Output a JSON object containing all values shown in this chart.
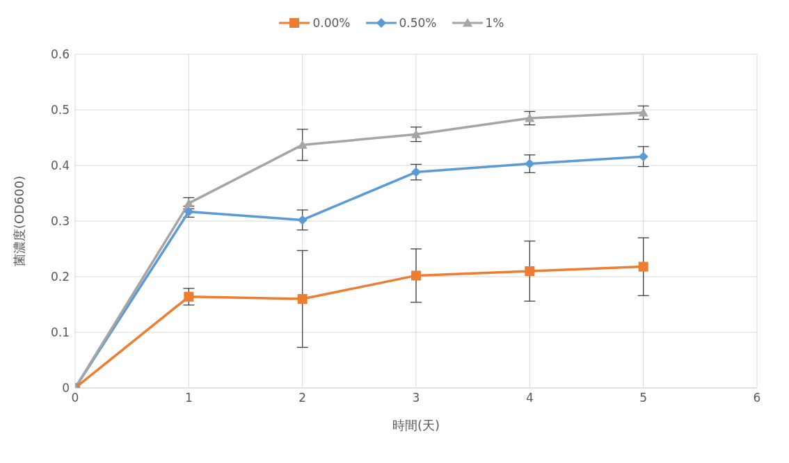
{
  "chart_data": {
    "type": "line",
    "xlabel": "時間(天)",
    "ylabel": "菌濃度(OD600)",
    "x": [
      0,
      1,
      2,
      3,
      4,
      5
    ],
    "xlim": [
      0,
      6
    ],
    "xticks": [
      0,
      1,
      2,
      3,
      4,
      5,
      6
    ],
    "ylim": [
      0,
      0.6
    ],
    "yticks": [
      0,
      0.1,
      0.2,
      0.3,
      0.4,
      0.5,
      0.6
    ],
    "grid": true,
    "legend": "top",
    "series": [
      {
        "name": "0.00%",
        "color": "#ed7d31",
        "marker": "square",
        "values": [
          0,
          0.164,
          0.16,
          0.202,
          0.21,
          0.218
        ],
        "errors": [
          null,
          0.015,
          0.087,
          0.048,
          0.054,
          0.052
        ]
      },
      {
        "name": "0.50%",
        "color": "#5b9bd5",
        "marker": "diamond",
        "values": [
          0,
          0.317,
          0.302,
          0.388,
          0.403,
          0.416
        ],
        "errors": [
          null,
          0.01,
          0.018,
          0.014,
          0.016,
          0.018
        ]
      },
      {
        "name": "1%",
        "color": "#a5a5a5",
        "marker": "triangle",
        "values": [
          0,
          0.332,
          0.437,
          0.456,
          0.485,
          0.495
        ],
        "errors": [
          null,
          0.01,
          0.028,
          0.013,
          0.012,
          0.012
        ]
      }
    ]
  }
}
